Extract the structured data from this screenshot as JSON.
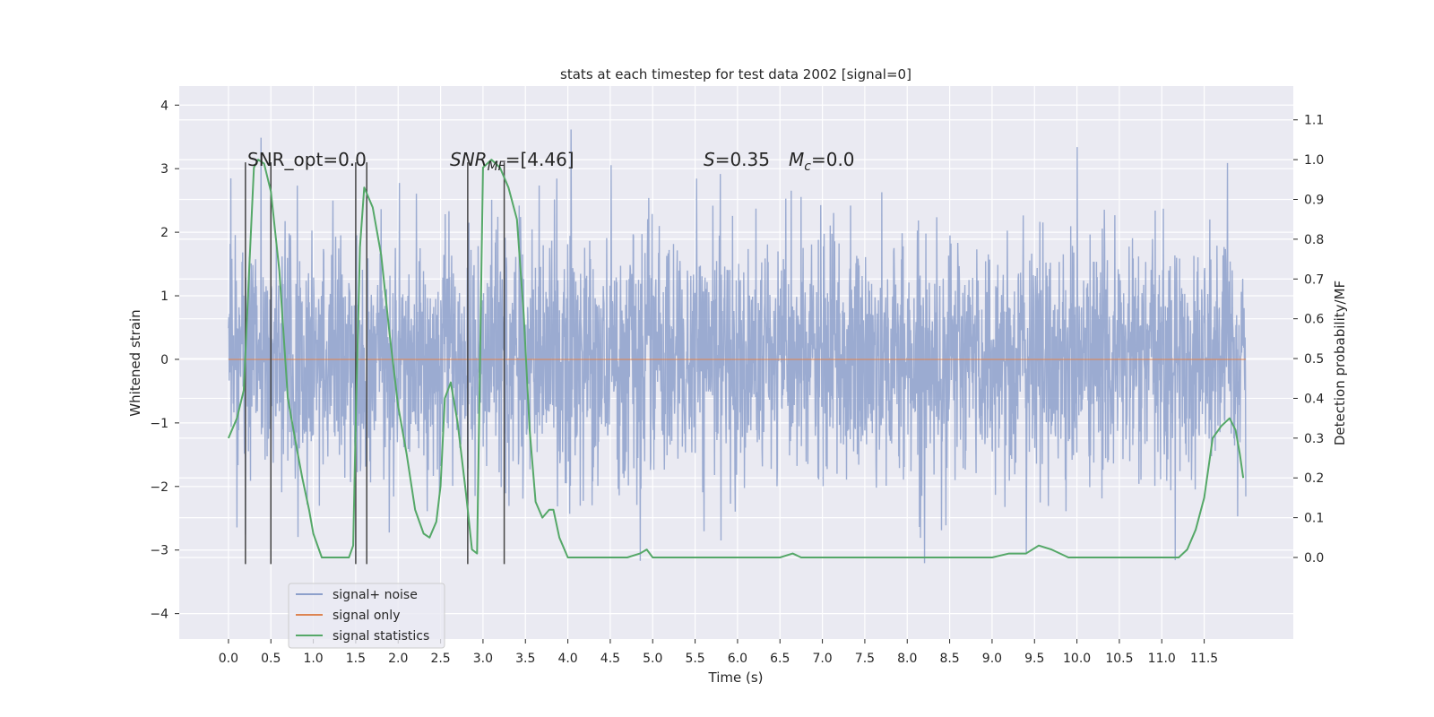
{
  "chart_data": {
    "type": "line",
    "title": "stats at each timestep for test data 2002 [signal=0]",
    "xlabel": "Time (s)",
    "ylabel": "Whitened strain",
    "y2label": "Detection probability/MF",
    "xlim": [
      -0.58,
      12.55
    ],
    "ylim": [
      -4.4,
      4.3
    ],
    "y2lim": [
      -0.205,
      1.185
    ],
    "xticks": [
      0.0,
      0.5,
      1.0,
      1.5,
      2.0,
      2.5,
      3.0,
      3.5,
      4.0,
      4.5,
      5.0,
      5.5,
      6.0,
      6.5,
      7.0,
      7.5,
      8.0,
      8.5,
      9.0,
      9.5,
      10.0,
      10.5,
      11.0,
      11.5
    ],
    "xtick_labels": [
      "0.0",
      "0.5",
      "1.0",
      "1.5",
      "2.0",
      "2.5",
      "3.0",
      "3.5",
      "4.0",
      "4.5",
      "5.0",
      "5.5",
      "6.0",
      "6.5",
      "7.0",
      "7.5",
      "8.0",
      "8.5",
      "9.0",
      "9.5",
      "10.0",
      "10.5",
      "11.0",
      "11.5"
    ],
    "yticks": [
      -4,
      -3,
      -2,
      -1,
      0,
      1,
      2,
      3,
      4
    ],
    "ytick_labels": [
      "−4",
      "−3",
      "−2",
      "−1",
      "0",
      "1",
      "2",
      "3",
      "4"
    ],
    "y2ticks": [
      0.0,
      0.1,
      0.2,
      0.3,
      0.4,
      0.5,
      0.6,
      0.7,
      0.8,
      0.9,
      1.0,
      1.1
    ],
    "y2tick_labels": [
      "0.0",
      "0.1",
      "0.2",
      "0.3",
      "0.4",
      "0.5",
      "0.6",
      "0.7",
      "0.8",
      "0.9",
      "1.0",
      "1.1"
    ],
    "grid": true,
    "legend_position": "lower-left",
    "annotations": {
      "snr_opt": "SNR_opt=0.0",
      "snr_mf_main": "SNR",
      "snr_mf_sub": "MF",
      "snr_mf_value": "=[4.46]",
      "s_symbol": "S",
      "s_value": "=0.35",
      "mc_symbol": "M",
      "mc_sub": "c",
      "mc_value": "=0.0"
    },
    "noise": {
      "name": "signal+ noise",
      "color": "#8da0cb",
      "x_range": [
        0.0,
        11.99
      ],
      "amplitude_std": 0.95,
      "max": 3.9,
      "min": -4.1
    },
    "signal_only": {
      "name": "signal only",
      "color": "#dd8452",
      "x": [
        0.0,
        11.99
      ],
      "y": [
        0.0,
        0.0
      ]
    },
    "statistics": {
      "name": "signal statistics",
      "color": "#55a868",
      "x": [
        0.0,
        0.1,
        0.18,
        0.25,
        0.3,
        0.35,
        0.42,
        0.5,
        0.6,
        0.7,
        0.8,
        0.87,
        0.95,
        1.0,
        1.1,
        1.3,
        1.42,
        1.47,
        1.5,
        1.55,
        1.6,
        1.7,
        1.8,
        1.9,
        2.0,
        2.1,
        2.2,
        2.3,
        2.37,
        2.45,
        2.5,
        2.55,
        2.62,
        2.7,
        2.8,
        2.87,
        2.93,
        3.0,
        3.1,
        3.2,
        3.3,
        3.4,
        3.48,
        3.55,
        3.62,
        3.7,
        3.78,
        3.83,
        3.9,
        4.0,
        4.3,
        4.7,
        4.85,
        4.93,
        5.0,
        5.3,
        6.0,
        6.3,
        6.5,
        6.65,
        6.75,
        6.9,
        7.5,
        8.0,
        8.5,
        9.0,
        9.2,
        9.4,
        9.55,
        9.7,
        9.9,
        10.5,
        11.1,
        11.2,
        11.3,
        11.4,
        11.5,
        11.6,
        11.7,
        11.75,
        11.8,
        11.87,
        11.92,
        11.96
      ],
      "y": [
        0.3,
        0.35,
        0.42,
        0.75,
        0.98,
        1.0,
        0.99,
        0.92,
        0.72,
        0.4,
        0.28,
        0.2,
        0.12,
        0.06,
        0.0,
        0.0,
        0.0,
        0.03,
        0.34,
        0.78,
        0.93,
        0.88,
        0.76,
        0.56,
        0.38,
        0.26,
        0.12,
        0.06,
        0.05,
        0.09,
        0.18,
        0.4,
        0.44,
        0.34,
        0.16,
        0.02,
        0.01,
        0.98,
        1.0,
        0.98,
        0.93,
        0.85,
        0.61,
        0.32,
        0.14,
        0.1,
        0.12,
        0.12,
        0.05,
        0.0,
        0.0,
        0.0,
        0.01,
        0.02,
        0.0,
        0.0,
        0.0,
        0.0,
        0.0,
        0.01,
        0.0,
        0.0,
        0.0,
        0.0,
        0.0,
        0.0,
        0.01,
        0.01,
        0.03,
        0.02,
        0.0,
        0.0,
        0.0,
        0.0,
        0.02,
        0.07,
        0.15,
        0.3,
        0.33,
        0.34,
        0.35,
        0.32,
        0.26,
        0.2
      ]
    },
    "marker_lines": {
      "color": "#444444",
      "x": [
        0.2,
        0.5,
        1.5,
        1.63,
        2.82,
        3.25
      ],
      "y_bottom": -3.22,
      "y_top": 3.1
    }
  }
}
